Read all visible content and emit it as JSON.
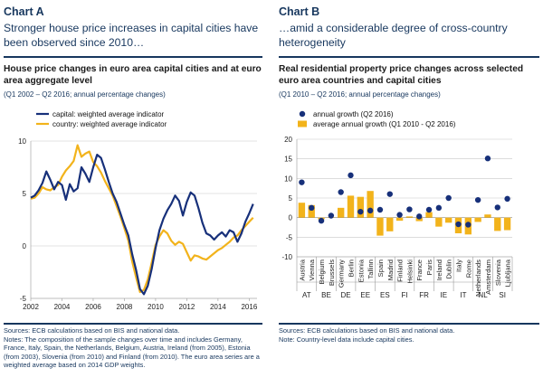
{
  "panels": {
    "a": {
      "label": "Chart A",
      "headline": "Stronger house price increases in capital cities have been observed since 2010…",
      "title": "House price changes in euro area capital cities and at euro area aggregate level",
      "subtitle": "(Q1 2002 – Q2 2016; annual percentage changes)",
      "notes": [
        "Sources: ECB calculations based on BIS and national data.",
        "Notes: The composition of the sample changes over time and includes Germany, France, Italy, Spain, the Netherlands, Belgium, Austria, Ireland (from 2005), Estonia (from 2003), Slovenia (from 2010) and Finland (from 2010). The euro area series are a weighted average based on 2014 GDP weights."
      ]
    },
    "b": {
      "label": "Chart B",
      "headline": "…amid a considerable degree of cross-country heterogeneity",
      "title": "Real residential property price changes across selected euro area countries and capital cities",
      "subtitle": "(Q1 2010 – Q2 2016; annual percentage changes)",
      "notes": [
        "Sources: ECB calculations based on BIS and national data.",
        "Note: Country-level data include capital cities."
      ]
    }
  },
  "colors": {
    "capital": "#17307a",
    "country": "#f2b31b",
    "text": "#17375e",
    "grid": "#c8c8c8"
  },
  "chart_data": [
    {
      "type": "line",
      "title": "House price changes in euro area capital cities and at euro area aggregate level",
      "ylim": [
        -5,
        10
      ],
      "yticks": [
        -5,
        0,
        5,
        10
      ],
      "xlim": [
        2002,
        2016.5
      ],
      "xticks": [
        2002,
        2004,
        2006,
        2008,
        2010,
        2012,
        2014,
        2016
      ],
      "legend": "top-left",
      "series": [
        {
          "name": "capital: weighted average indicator",
          "color": "#17307a",
          "x": [
            2002,
            2002.25,
            2002.5,
            2002.75,
            2003,
            2003.25,
            2003.5,
            2003.75,
            2004,
            2004.25,
            2004.5,
            2004.75,
            2005,
            2005.25,
            2005.5,
            2005.75,
            2006,
            2006.25,
            2006.5,
            2006.75,
            2007,
            2007.25,
            2007.5,
            2007.75,
            2008,
            2008.25,
            2008.5,
            2008.75,
            2009,
            2009.25,
            2009.5,
            2009.75,
            2010,
            2010.25,
            2010.5,
            2010.75,
            2011,
            2011.25,
            2011.5,
            2011.75,
            2012,
            2012.25,
            2012.5,
            2012.75,
            2013,
            2013.25,
            2013.5,
            2013.75,
            2014,
            2014.25,
            2014.5,
            2014.75,
            2015,
            2015.25,
            2015.5,
            2015.75,
            2016,
            2016.25
          ],
          "values": [
            4.6,
            4.8,
            5.3,
            6.0,
            7.1,
            6.3,
            5.4,
            6.1,
            5.8,
            4.4,
            5.9,
            5.2,
            5.5,
            7.5,
            6.9,
            6.1,
            7.5,
            8.7,
            8.4,
            7.3,
            6.1,
            5.0,
            4.2,
            3.1,
            2.0,
            1.0,
            -0.8,
            -2.3,
            -4.1,
            -4.6,
            -3.8,
            -2.2,
            -0.2,
            1.5,
            2.6,
            3.4,
            4.0,
            4.8,
            4.3,
            2.9,
            4.2,
            5.1,
            4.8,
            3.6,
            2.2,
            1.2,
            1.0,
            0.6,
            1.0,
            1.3,
            0.9,
            1.5,
            1.3,
            0.4,
            1.2,
            2.3,
            3.1,
            4.0
          ]
        },
        {
          "name": "country: weighted average indicator",
          "color": "#f2b31b",
          "x": [
            2002,
            2002.25,
            2002.5,
            2002.75,
            2003,
            2003.25,
            2003.5,
            2003.75,
            2004,
            2004.25,
            2004.5,
            2004.75,
            2005,
            2005.25,
            2005.5,
            2005.75,
            2006,
            2006.25,
            2006.5,
            2006.75,
            2007,
            2007.25,
            2007.5,
            2007.75,
            2008,
            2008.25,
            2008.5,
            2008.75,
            2009,
            2009.25,
            2009.5,
            2009.75,
            2010,
            2010.25,
            2010.5,
            2010.75,
            2011,
            2011.25,
            2011.5,
            2011.75,
            2012,
            2012.25,
            2012.5,
            2012.75,
            2013,
            2013.25,
            2013.5,
            2013.75,
            2014,
            2014.25,
            2014.5,
            2014.75,
            2015,
            2015.25,
            2015.5,
            2015.75,
            2016,
            2016.25
          ],
          "values": [
            4.5,
            4.6,
            5.0,
            5.6,
            5.4,
            5.3,
            5.6,
            5.8,
            6.6,
            7.2,
            7.6,
            8.1,
            9.6,
            8.5,
            8.8,
            9.0,
            8.0,
            7.6,
            7.0,
            6.2,
            5.5,
            4.8,
            3.8,
            2.8,
            1.7,
            0.5,
            -1.5,
            -3.0,
            -4.4,
            -4.2,
            -3.2,
            -1.6,
            0.1,
            0.9,
            1.5,
            1.2,
            0.5,
            0.1,
            0.4,
            0.2,
            -0.6,
            -1.4,
            -0.9,
            -1.0,
            -1.2,
            -1.3,
            -1.0,
            -0.7,
            -0.4,
            -0.2,
            0.1,
            0.4,
            0.8,
            1.0,
            1.5,
            1.9,
            2.3,
            2.7
          ]
        }
      ]
    },
    {
      "type": "bar",
      "title": "Real residential property price changes across selected euro area countries and capital cities",
      "ylim": [
        -10,
        20
      ],
      "yticks": [
        -10,
        -5,
        0,
        5,
        10,
        15,
        20
      ],
      "legend": "top-left",
      "categories": [
        "Austria",
        "Vienna",
        "Belgium",
        "Brussels",
        "Germany",
        "Berlin",
        "Estonia",
        "Tallinn",
        "Spain",
        "Madrid",
        "Finland",
        "Helsinki",
        "France",
        "Paris",
        "Ireland",
        "Dublin",
        "Italy",
        "Rome",
        "Netherlands",
        "Amsterdam",
        "Slovenia",
        "Ljubljana"
      ],
      "groups": [
        "AT",
        "BE",
        "DE",
        "EE",
        "ES",
        "FI",
        "FR",
        "IE",
        "IT",
        "NL",
        "SI"
      ],
      "series": [
        {
          "name": "annual growth (Q2 2016)",
          "style": "dot",
          "color": "#17307a",
          "values": [
            9.0,
            2.5,
            -0.8,
            0.5,
            6.5,
            10.8,
            1.5,
            1.8,
            2.0,
            6.0,
            0.7,
            2.1,
            0.3,
            2.0,
            2.5,
            5.0,
            -1.7,
            -1.8,
            4.5,
            15.1,
            2.6,
            4.8
          ]
        },
        {
          "name": "average annual growth (Q1 2010 - Q2 2016)",
          "style": "bar",
          "color": "#f2b31b",
          "values": [
            3.8,
            3.2,
            -0.4,
            0.1,
            2.5,
            5.6,
            5.3,
            6.8,
            -4.6,
            -3.5,
            -0.8,
            0.3,
            -0.9,
            1.4,
            -2.3,
            -1.3,
            -4.0,
            -4.3,
            -1.1,
            0.8,
            -3.4,
            -3.2
          ]
        }
      ]
    }
  ]
}
